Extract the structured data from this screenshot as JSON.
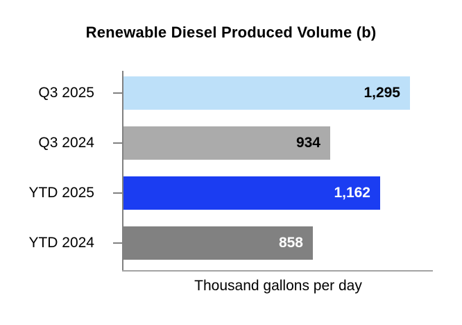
{
  "chart_data": {
    "type": "bar",
    "orientation": "horizontal",
    "title": "Renewable Diesel Produced Volume (b)",
    "categories": [
      "Q3 2025",
      "Q3 2024",
      "YTD 2025",
      "YTD 2024"
    ],
    "values": [
      1295,
      934,
      1162,
      858
    ],
    "value_labels": [
      "1,295",
      "934",
      "1,162",
      "858"
    ],
    "xlabel": "Thousand gallons per day",
    "ylabel": "",
    "xlim": [
      0,
      1400
    ],
    "grid": false,
    "legend": false,
    "bar_colors": [
      "#bde0f9",
      "#ababab",
      "#1b3df2",
      "#818181"
    ],
    "value_label_colors": [
      "#000000",
      "#000000",
      "#ffffff",
      "#ffffff"
    ],
    "axis_color": "#808080"
  }
}
